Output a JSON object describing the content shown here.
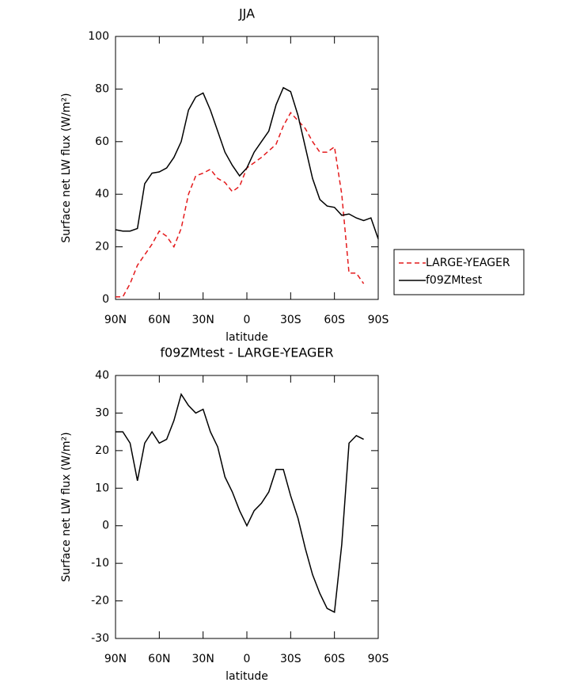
{
  "chart_data": [
    {
      "type": "line",
      "title": "JJA",
      "xlabel": "latitude",
      "ylabel": "Surface net LW flux (W/m²)",
      "x": [
        90,
        85,
        80,
        75,
        70,
        65,
        60,
        55,
        50,
        45,
        40,
        35,
        30,
        25,
        20,
        15,
        10,
        5,
        0,
        -5,
        -10,
        -15,
        -20,
        -25,
        -30,
        -35,
        -40,
        -45,
        -50,
        -55,
        -60,
        -65,
        -70,
        -75,
        -80,
        -85,
        -90
      ],
      "series": [
        {
          "name": "LARGE-YEAGER",
          "color": "#e41a1c",
          "dashed": true,
          "values": [
            1,
            1,
            6,
            13,
            17,
            21,
            26,
            24,
            20,
            27,
            40,
            47,
            48,
            49.5,
            46,
            44.5,
            41,
            43,
            50,
            52,
            54,
            56.5,
            59,
            66,
            71,
            68,
            65,
            60,
            56,
            56,
            58,
            40,
            10,
            10,
            6,
            null,
            null
          ]
        },
        {
          "name": "f09ZMtest",
          "color": "#000000",
          "dashed": false,
          "values": [
            26.5,
            26,
            26,
            27,
            44,
            48,
            48.5,
            50,
            54,
            60,
            72,
            77,
            78.5,
            72,
            64,
            56,
            51,
            47,
            50,
            56,
            60,
            64,
            74,
            80.5,
            79,
            70,
            58,
            46,
            38,
            35.5,
            35,
            32,
            32.5,
            31,
            30,
            31,
            23
          ]
        }
      ],
      "xlim": [
        90,
        -90
      ],
      "xticks": [
        {
          "value": 90,
          "label": "90N"
        },
        {
          "value": 60,
          "label": "60N"
        },
        {
          "value": 30,
          "label": "30N"
        },
        0,
        {
          "value": -30,
          "label": "30S"
        },
        {
          "value": -60,
          "label": "60S"
        },
        {
          "value": -90,
          "label": "90S"
        }
      ],
      "ylim": [
        0,
        100
      ],
      "yticks": [
        0,
        20,
        40,
        60,
        80,
        100
      ],
      "legend": "right"
    },
    {
      "type": "line",
      "title": "f09ZMtest - LARGE-YEAGER",
      "xlabel": "latitude",
      "ylabel": "Surface net LW flux (W/m²)",
      "x": [
        90,
        85,
        80,
        75,
        70,
        65,
        60,
        55,
        50,
        45,
        40,
        35,
        30,
        25,
        20,
        15,
        10,
        5,
        0,
        -5,
        -10,
        -15,
        -20,
        -25,
        -30,
        -35,
        -40,
        -45,
        -50,
        -55,
        -60,
        -65,
        -70,
        -75,
        -80,
        -85,
        -90
      ],
      "series": [
        {
          "color": "#000000",
          "dashed": false,
          "values": [
            25,
            25,
            22,
            12,
            22,
            25,
            22,
            23,
            28,
            35,
            32,
            30,
            31,
            25,
            21,
            13,
            9,
            4,
            0,
            4,
            6,
            9,
            15,
            15,
            8,
            2,
            -6,
            -13,
            -18,
            -22,
            -23,
            -5,
            22,
            24,
            23,
            null,
            null
          ]
        }
      ],
      "xlim": [
        90,
        -90
      ],
      "xticks": [
        {
          "value": 90,
          "label": "90N"
        },
        {
          "value": 60,
          "label": "60N"
        },
        {
          "value": 30,
          "label": "30N"
        },
        0,
        {
          "value": -30,
          "label": "30S"
        },
        {
          "value": -60,
          "label": "60S"
        },
        {
          "value": -90,
          "label": "90S"
        }
      ],
      "ylim": [
        -30,
        40
      ],
      "yticks": [
        -30,
        -20,
        -10,
        0,
        10,
        20,
        30,
        40
      ]
    }
  ]
}
